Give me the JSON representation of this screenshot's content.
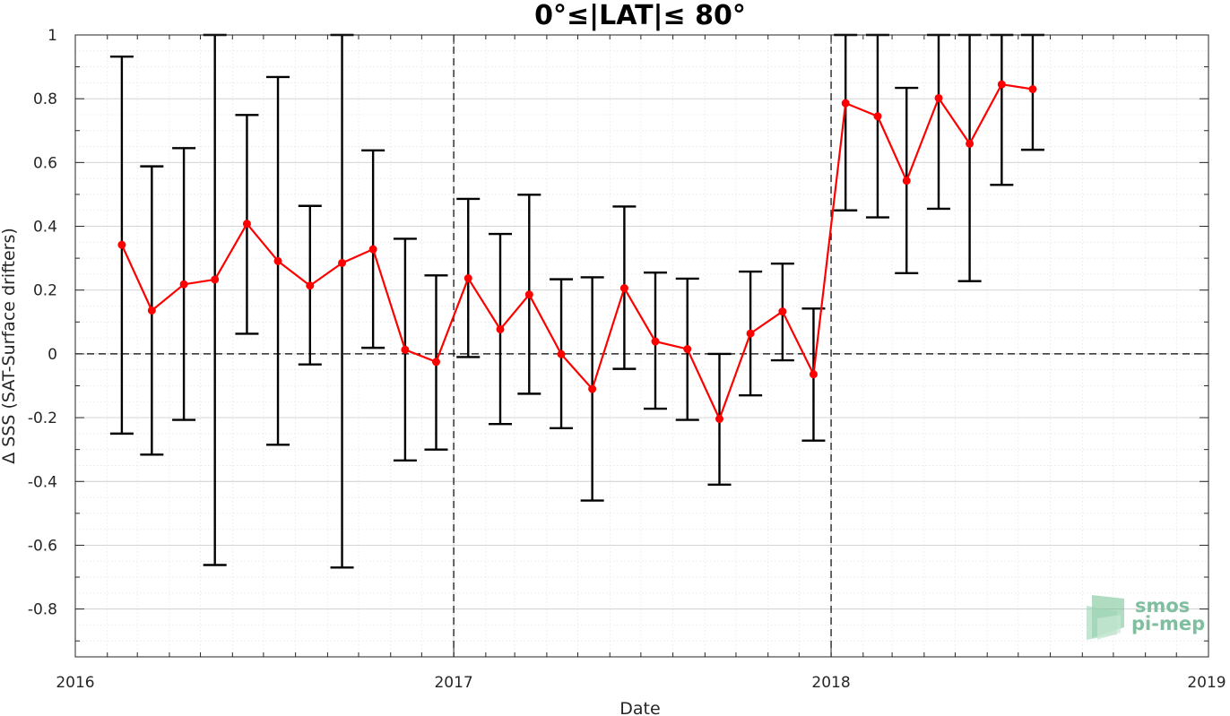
{
  "chart_data": {
    "type": "line",
    "title": "0°≤|LAT|≤ 80°",
    "xlabel": "Date",
    "ylabel": "Δ SSS (SAT-Surface drifters)",
    "xlim": [
      "2016-01-01",
      "2019-01-01"
    ],
    "ylim": [
      -0.95,
      1.0
    ],
    "x_ticks": [
      "2016",
      "2017",
      "2018",
      "2019"
    ],
    "y_ticks": [
      -0.8,
      -0.6,
      -0.4,
      -0.2,
      0,
      0.2,
      0.4,
      0.6,
      0.8,
      1
    ],
    "y_tick_labels": [
      "-0.8",
      "-0.6",
      "-0.4",
      "-0.2",
      "0",
      "0.2",
      "0.4",
      "0.6",
      "0.8",
      "1"
    ],
    "grid": true,
    "reference_lines": {
      "y": 0,
      "x": [
        "2017-01-01",
        "2018-01-01"
      ]
    },
    "line_color": "#ff0000",
    "errorbar_color": "#000000",
    "series": [
      {
        "x": [
          "2016-02-15",
          "2016-03-15",
          "2016-04-15",
          "2016-05-15",
          "2016-06-15",
          "2016-07-15",
          "2016-08-15",
          "2016-09-15",
          "2016-10-15",
          "2016-11-15",
          "2016-12-15",
          "2017-01-15",
          "2017-02-15",
          "2017-03-15",
          "2017-04-15",
          "2017-05-15",
          "2017-06-15",
          "2017-07-15",
          "2017-08-15",
          "2017-09-15",
          "2017-10-15",
          "2017-11-15",
          "2017-12-15",
          "2018-01-15",
          "2018-02-15",
          "2018-03-15",
          "2018-04-15",
          "2018-05-15",
          "2018-06-15",
          "2018-07-15"
        ],
        "y": [
          0.342,
          0.136,
          0.218,
          0.233,
          0.408,
          0.291,
          0.214,
          0.285,
          0.328,
          0.013,
          -0.025,
          0.237,
          0.077,
          0.186,
          -0.001,
          -0.11,
          0.206,
          0.039,
          0.015,
          -0.204,
          0.064,
          0.133,
          -0.064,
          0.786,
          0.745,
          0.543,
          0.802,
          0.659,
          0.845,
          0.83
        ],
        "lower": [
          -0.25,
          -0.316,
          -0.207,
          -0.662,
          0.063,
          -0.285,
          -0.033,
          -0.67,
          0.019,
          -0.334,
          -0.3,
          -0.01,
          -0.22,
          -0.125,
          -0.233,
          -0.46,
          -0.047,
          -0.172,
          -0.207,
          -0.41,
          -0.13,
          -0.02,
          -0.272,
          0.45,
          0.428,
          0.253,
          0.455,
          0.228,
          0.53,
          0.64
        ],
        "upper": [
          0.932,
          0.588,
          0.645,
          1.0,
          0.749,
          0.868,
          0.464,
          1.0,
          0.638,
          0.361,
          0.246,
          0.486,
          0.376,
          0.499,
          0.234,
          0.24,
          0.462,
          0.255,
          0.236,
          0.0,
          0.258,
          0.283,
          0.142,
          1.0,
          1.0,
          0.834,
          1.0,
          1.0,
          1.0,
          1.0
        ]
      }
    ]
  },
  "logo": {
    "line1": "smos",
    "line2": "pi-mep"
  }
}
